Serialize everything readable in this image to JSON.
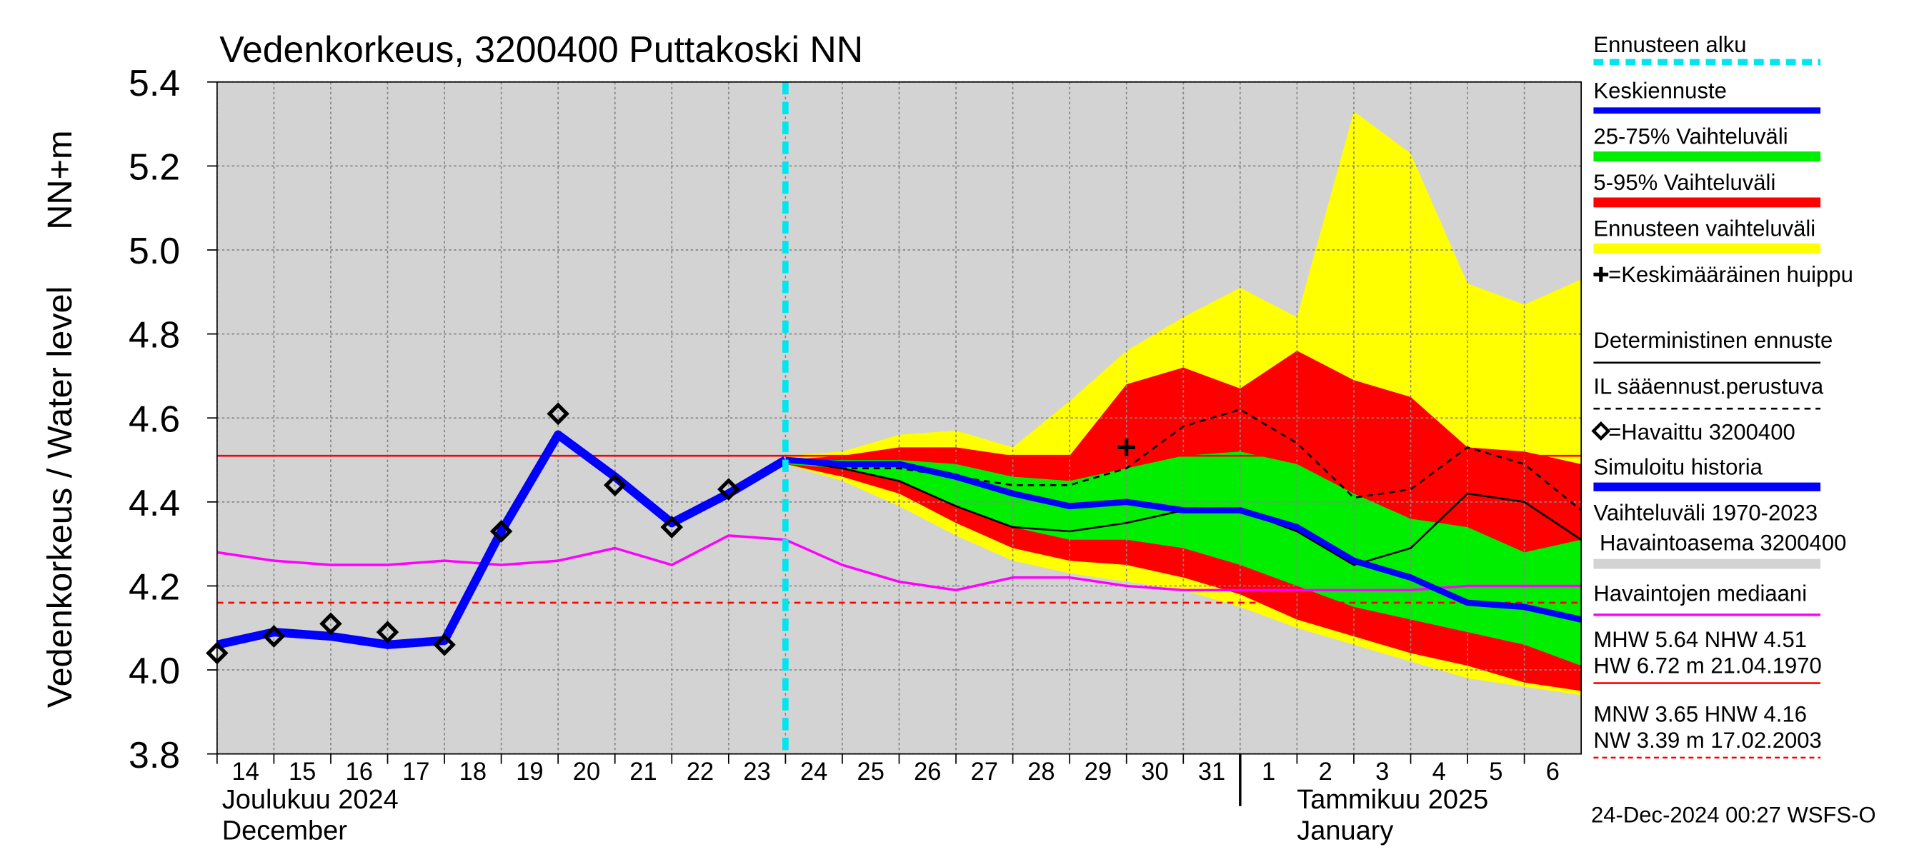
{
  "chart_data": {
    "type": "line",
    "title": "Vedenkorkeus, 3200400 Puttakoski NN",
    "y_label": "Vedenkorkeus / Water level",
    "y_unit": "NN+m",
    "xlim": [
      0,
      24
    ],
    "xticks": [
      {
        "value": 0,
        "label": "14"
      },
      {
        "value": 1,
        "label": "15"
      },
      {
        "value": 2,
        "label": "16"
      },
      {
        "value": 3,
        "label": "17"
      },
      {
        "value": 4,
        "label": "18"
      },
      {
        "value": 5,
        "label": "19"
      },
      {
        "value": 6,
        "label": "20"
      },
      {
        "value": 7,
        "label": "21"
      },
      {
        "value": 8,
        "label": "22"
      },
      {
        "value": 9,
        "label": "23"
      },
      {
        "value": 10,
        "label": "24"
      },
      {
        "value": 11,
        "label": "25"
      },
      {
        "value": 12,
        "label": "26"
      },
      {
        "value": 13,
        "label": "27"
      },
      {
        "value": 14,
        "label": "28"
      },
      {
        "value": 15,
        "label": "29"
      },
      {
        "value": 16,
        "label": "30"
      },
      {
        "value": 17,
        "label": "31"
      },
      {
        "value": 18,
        "label": "1"
      },
      {
        "value": 19,
        "label": "2"
      },
      {
        "value": 20,
        "label": "3"
      },
      {
        "value": 21,
        "label": "4"
      },
      {
        "value": 22,
        "label": "5"
      },
      {
        "value": 23,
        "label": "6"
      }
    ],
    "ylim": [
      3.8,
      5.4
    ],
    "yticks": [
      3.8,
      {
        "value": 4,
        "label": "4.0"
      },
      4.2,
      4.4,
      4.6,
      4.8,
      {
        "value": 5,
        "label": "5.0"
      },
      5.2,
      5.4
    ],
    "grid": true,
    "months": [
      {
        "fi": "Joulukuu  2024",
        "en": "December",
        "x": 0
      },
      {
        "fi": "Tammikuu  2025",
        "en": "January",
        "x": 18
      }
    ],
    "forecast_start": {
      "name": "Ennusteen alku",
      "x": 10,
      "color": "#00e5ee"
    },
    "historical_range": {
      "name": "Vaihteluväli 1970-2023",
      "station": "Havaintoasema 3200400",
      "color": "#d3d3d3"
    },
    "bands": [
      {
        "name": "Ennusteen vaihteluväli",
        "color": "#ffff00",
        "x": [
          10,
          11,
          12,
          13,
          14,
          15,
          16,
          17,
          18,
          19,
          20,
          21,
          22,
          23,
          24
        ],
        "upper": [
          4.51,
          4.52,
          4.56,
          4.57,
          4.53,
          4.64,
          4.76,
          4.84,
          4.91,
          4.84,
          5.33,
          5.23,
          4.92,
          4.87,
          4.93
        ],
        "lower": [
          4.49,
          4.45,
          4.39,
          4.32,
          4.26,
          4.23,
          4.21,
          4.19,
          4.15,
          4.1,
          4.06,
          4.02,
          3.98,
          3.96,
          3.94
        ]
      },
      {
        "name": "5-95% Vaihteluväli",
        "color": "#ff0000",
        "x": [
          10,
          11,
          12,
          13,
          14,
          15,
          16,
          17,
          18,
          19,
          20,
          21,
          22,
          23,
          24
        ],
        "upper": [
          4.5,
          4.51,
          4.53,
          4.53,
          4.51,
          4.51,
          4.68,
          4.72,
          4.67,
          4.76,
          4.69,
          4.65,
          4.53,
          4.52,
          4.49
        ],
        "lower": [
          4.49,
          4.46,
          4.42,
          4.35,
          4.29,
          4.26,
          4.25,
          4.22,
          4.18,
          4.12,
          4.08,
          4.04,
          4.01,
          3.97,
          3.95
        ]
      },
      {
        "name": "25-75% Vaihteluväli",
        "color": "#00ee00",
        "x": [
          10,
          11,
          12,
          13,
          14,
          15,
          16,
          17,
          18,
          19,
          20,
          21,
          22,
          23,
          24
        ],
        "upper": [
          4.5,
          4.5,
          4.5,
          4.49,
          4.46,
          4.45,
          4.48,
          4.51,
          4.52,
          4.49,
          4.42,
          4.36,
          4.34,
          4.28,
          4.31
        ],
        "lower": [
          4.49,
          4.48,
          4.45,
          4.39,
          4.34,
          4.31,
          4.31,
          4.29,
          4.25,
          4.2,
          4.15,
          4.12,
          4.09,
          4.06,
          4.01
        ]
      }
    ],
    "series": [
      {
        "name": "Havaintojen mediaani",
        "color": "#ff00ff",
        "width": 2,
        "dashed": false,
        "x": [
          0,
          1,
          2,
          3,
          4,
          5,
          6,
          7,
          8,
          9,
          10,
          11,
          12,
          13,
          14,
          15,
          16,
          17,
          18,
          19,
          20,
          21,
          22,
          23,
          24
        ],
        "values": [
          4.28,
          4.26,
          4.25,
          4.25,
          4.26,
          4.25,
          4.26,
          4.29,
          4.25,
          4.32,
          4.31,
          4.25,
          4.21,
          4.19,
          4.22,
          4.22,
          4.2,
          4.19,
          4.19,
          4.19,
          4.19,
          4.19,
          4.2,
          4.2,
          4.2
        ]
      },
      {
        "name": "Deterministinen ennuste",
        "color": "#000000",
        "width": 1.5,
        "dashed": false,
        "x": [
          10,
          11,
          12,
          13,
          14,
          15,
          16,
          17,
          18,
          19,
          20,
          21,
          22,
          23,
          24
        ],
        "values": [
          4.5,
          4.48,
          4.45,
          4.39,
          4.34,
          4.33,
          4.35,
          4.38,
          4.38,
          4.33,
          4.25,
          4.29,
          4.42,
          4.4,
          4.31
        ]
      },
      {
        "name": "IL sääennust.perustuva",
        "color": "#000000",
        "width": 1.5,
        "dashed": true,
        "x": [
          10,
          11,
          12,
          13,
          14,
          15,
          16,
          17,
          18,
          19,
          20,
          21,
          22,
          23,
          24
        ],
        "values": [
          4.5,
          4.48,
          4.48,
          4.46,
          4.44,
          4.44,
          4.48,
          4.58,
          4.62,
          4.54,
          4.41,
          4.43,
          4.53,
          4.49,
          4.38
        ]
      },
      {
        "name": "Keskiennuste",
        "color": "#0000ff",
        "width": 5,
        "dashed": false,
        "x": [
          10,
          11,
          12,
          13,
          14,
          15,
          16,
          17,
          18,
          19,
          20,
          21,
          22,
          23,
          24
        ],
        "values": [
          4.5,
          4.49,
          4.49,
          4.46,
          4.42,
          4.39,
          4.4,
          4.38,
          4.38,
          4.34,
          4.26,
          4.22,
          4.16,
          4.15,
          4.12
        ]
      },
      {
        "name": "Simuloitu historia",
        "color": "#0000ff",
        "width": 7,
        "dashed": false,
        "x": [
          0,
          1,
          2,
          3,
          4,
          5,
          6,
          7,
          8,
          9,
          10
        ],
        "values": [
          4.06,
          4.09,
          4.08,
          4.06,
          4.07,
          4.33,
          4.56,
          4.46,
          4.35,
          4.42,
          4.5
        ]
      }
    ],
    "observed": {
      "name": "=Havaittu 3200400",
      "x": [
        0,
        1,
        2,
        3,
        4,
        5,
        6,
        7,
        8,
        9
      ],
      "values": [
        4.04,
        4.08,
        4.11,
        4.09,
        4.06,
        4.33,
        4.61,
        4.44,
        4.34,
        4.43
      ]
    },
    "mean_peak": {
      "name": "=Keskimääräinen huippu",
      "x": 16,
      "value": 4.53
    },
    "reference_lines": [
      {
        "lines": [
          "MHW   5.64 NHW   4.51",
          "HW   6.72 m 21.04.1970"
        ],
        "value": 4.51,
        "color": "#ff0000",
        "dashed": false
      },
      {
        "lines": [
          "MNW   3.65 HNW   4.16",
          "NW   3.39 m 17.02.2003"
        ],
        "value": 4.16,
        "color": "#ff0000",
        "dashed": true
      }
    ],
    "footer": "24-Dec-2024 00:27 WSFS-O"
  }
}
